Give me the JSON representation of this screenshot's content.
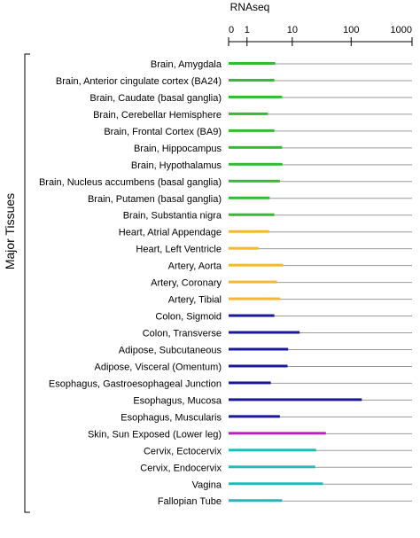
{
  "chart_data": {
    "type": "bar",
    "orientation": "horizontal",
    "title": "RNAseq",
    "group_label": "Major Tissues",
    "x_scale": "log1p",
    "xlim": [
      0,
      1000
    ],
    "x_ticks": [
      {
        "label": "0",
        "value": 0
      },
      {
        "label": "1",
        "value": 1
      },
      {
        "label": "10",
        "value": 10
      },
      {
        "label": "100",
        "value": 100
      },
      {
        "label": "1000",
        "value": 1000
      }
    ],
    "grid": "horizontal row lines",
    "categories": [
      {
        "label": "Brain, Amygdala",
        "value": 4.8,
        "color": "#33bb33"
      },
      {
        "label": "Brain, Anterior cingulate cortex (BA24)",
        "value": 4.6,
        "color": "#33bb33"
      },
      {
        "label": "Brain, Caudate (basal ganglia)",
        "value": 6.5,
        "color": "#33bb33"
      },
      {
        "label": "Brain, Cerebellar Hemisphere",
        "value": 3.4,
        "color": "#33bb33"
      },
      {
        "label": "Brain, Frontal Cortex (BA9)",
        "value": 4.6,
        "color": "#33bb33"
      },
      {
        "label": "Brain, Hippocampus",
        "value": 6.5,
        "color": "#33bb33"
      },
      {
        "label": "Brain, Hypothalamus",
        "value": 6.6,
        "color": "#33bb33"
      },
      {
        "label": "Brain, Nucleus accumbens (basal ganglia)",
        "value": 5.9,
        "color": "#33bb33"
      },
      {
        "label": "Brain, Putamen (basal ganglia)",
        "value": 3.7,
        "color": "#33bb33"
      },
      {
        "label": "Brain, Substantia nigra",
        "value": 4.6,
        "color": "#33bb33"
      },
      {
        "label": "Heart, Atrial Appendage",
        "value": 3.6,
        "color": "#f5b730"
      },
      {
        "label": "Heart, Left Ventricle",
        "value": 2.1,
        "color": "#f5b730"
      },
      {
        "label": "Artery, Aorta",
        "value": 6.8,
        "color": "#f5b730"
      },
      {
        "label": "Artery, Coronary",
        "value": 5.2,
        "color": "#f5b730"
      },
      {
        "label": "Artery, Tibial",
        "value": 6.0,
        "color": "#f5b730"
      },
      {
        "label": "Colon, Sigmoid",
        "value": 4.6,
        "color": "#1a1a99"
      },
      {
        "label": "Colon, Transverse",
        "value": 13.5,
        "color": "#1a1a99"
      },
      {
        "label": "Adipose, Subcutaneous",
        "value": 8.4,
        "color": "#1a1a99"
      },
      {
        "label": "Adipose, Visceral (Omentum)",
        "value": 8.2,
        "color": "#1a1a99"
      },
      {
        "label": "Esophagus, Gastroesophageal Junction",
        "value": 3.9,
        "color": "#1a1a99"
      },
      {
        "label": "Esophagus, Mucosa",
        "value": 150,
        "color": "#1a1a99"
      },
      {
        "label": "Esophagus, Muscularis",
        "value": 5.9,
        "color": "#1a1a99"
      },
      {
        "label": "Skin, Sun Exposed (Lower leg)",
        "value": 38,
        "color": "#bb22bb"
      },
      {
        "label": "Cervix, Ectocervix",
        "value": 26,
        "color": "#22bbbb"
      },
      {
        "label": "Cervix, Endocervix",
        "value": 25,
        "color": "#22bbbb"
      },
      {
        "label": "Vagina",
        "value": 34,
        "color": "#22bbbb"
      },
      {
        "label": "Fallopian Tube",
        "value": 6.5,
        "color": "#22bbbb"
      }
    ]
  }
}
